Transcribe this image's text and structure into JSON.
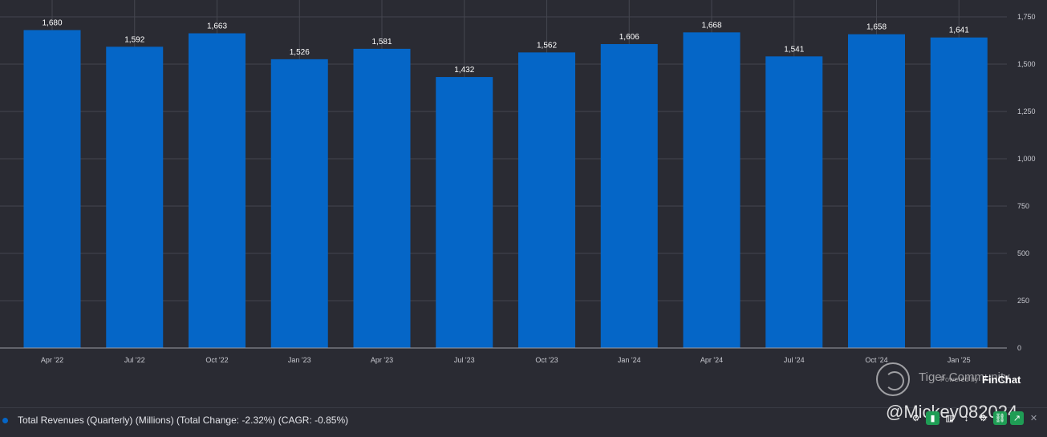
{
  "chart_data": {
    "type": "bar",
    "categories": [
      "Apr '22",
      "Jul '22",
      "Oct '22",
      "Jan '23",
      "Apr '23",
      "Jul '23",
      "Oct '23",
      "Jan '24",
      "Apr '24",
      "Jul '24",
      "Oct '24",
      "Jan '25"
    ],
    "values": [
      1680,
      1592,
      1663,
      1526,
      1581,
      1432,
      1562,
      1606,
      1668,
      1541,
      1658,
      1641
    ],
    "value_labels": [
      "1,680",
      "1,592",
      "1,663",
      "1,526",
      "1,581",
      "1,432",
      "1,562",
      "1,606",
      "1,668",
      "1,541",
      "1,658",
      "1,641"
    ],
    "title": "",
    "xlabel": "",
    "ylabel": "",
    "ylim": [
      0,
      1750
    ],
    "yticks": [
      0,
      250,
      500,
      750,
      1000,
      1250,
      1500,
      1750
    ],
    "ytick_labels": [
      "0",
      "250",
      "500",
      "750",
      "1,000",
      "1,250",
      "1,500",
      "1,750"
    ],
    "y_axis_side": "right",
    "grid": true,
    "legend_position": "bottom-left",
    "bar_color": "#0566c7",
    "series": [
      {
        "name": "Total Revenues (Quarterly) (Millions) (Total Change: -2.32%) (CAGR: -0.85%)",
        "color": "#0566c7"
      }
    ]
  },
  "watermark": {
    "brand": "Tiger Community",
    "powered": "Powered by",
    "finchat": "FinChat",
    "handle": "@Mickey082024"
  },
  "toolbar": {
    "icons": [
      "settings-icon",
      "bar-chart-icon",
      "stats-icon",
      "up-down-icon",
      "gear-icon",
      "link-icon",
      "share-icon",
      "close-icon"
    ]
  }
}
